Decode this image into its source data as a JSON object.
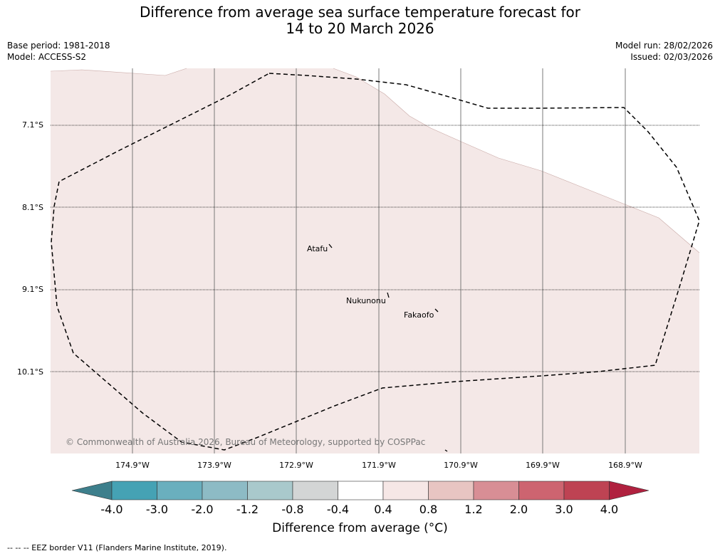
{
  "title": {
    "line1": "Difference from average sea surface temperature forecast for",
    "line2": "14 to 20 March 2026"
  },
  "meta": {
    "base_period": "Base period: 1981-2018",
    "model": "Model: ACCESS-S2",
    "model_run": "Model run: 28/02/2026",
    "issued": "Issued: 02/03/2026"
  },
  "map": {
    "latitude_labels": [
      "7.1°S",
      "8.1°S",
      "9.1°S",
      "10.1°S"
    ],
    "longitude_labels": [
      "174.9°W",
      "173.9°W",
      "172.9°W",
      "171.9°W",
      "170.9°W",
      "169.9°W",
      "168.9°W"
    ],
    "places": [
      {
        "name": "Atafu"
      },
      {
        "name": "Nukunonu"
      },
      {
        "name": "Fakaofo"
      }
    ],
    "copyright": "© Commonwealth of Australia 2026, Bureau of Meteorology, supported by COSPPac",
    "colors": {
      "anomaly_fill": "#f4e8e7",
      "land_outline": "#c9a9a6",
      "grid_line": "#7a7a7a",
      "eez_line": "#000000"
    }
  },
  "colorbar": {
    "tick_labels": [
      "-4.0",
      "-3.0",
      "-2.0",
      "-1.2",
      "-0.8",
      "-0.4",
      "0.4",
      "0.8",
      "1.2",
      "2.0",
      "3.0",
      "4.0"
    ],
    "low_extend_color": "#3d7f8c",
    "high_extend_color": "#b0213f",
    "bin_colors": [
      "#45a2b4",
      "#6aafbe",
      "#8dbbc5",
      "#a9c9cc",
      "#d3d5d5",
      "#ffffff",
      "#f6e7e6",
      "#e8c5c2",
      "#d88e95",
      "#cd6470",
      "#be4353"
    ],
    "label": "Difference from average (°C)"
  },
  "footer": "--  --  -- EEZ border V11 (Flanders Marine Institute, 2019)."
}
